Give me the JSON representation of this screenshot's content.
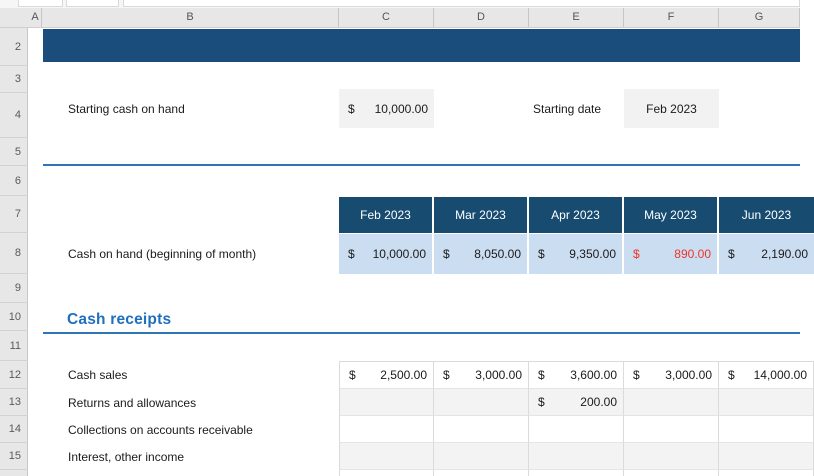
{
  "grid": {
    "column_letters": [
      "A",
      "B",
      "C",
      "D",
      "E",
      "F",
      "G"
    ],
    "row_numbers": [
      "2",
      "3",
      "4",
      "5",
      "6",
      "7",
      "8",
      "9",
      "10",
      "11",
      "12",
      "13",
      "14",
      "15"
    ]
  },
  "settings": {
    "starting_cash_label": "Starting cash on hand",
    "starting_cash_currency": "$",
    "starting_cash_value": "10,000.00",
    "starting_date_label": "Starting date",
    "starting_date_value": "Feb 2023"
  },
  "table": {
    "months": [
      "Feb 2023",
      "Mar 2023",
      "Apr 2023",
      "May 2023",
      "Jun 2023"
    ],
    "cash_on_hand_row": {
      "label": "Cash on hand (beginning of month)",
      "cells": [
        {
          "currency": "$",
          "amount": "10,000.00",
          "negative": false
        },
        {
          "currency": "$",
          "amount": "8,050.00",
          "negative": false
        },
        {
          "currency": "$",
          "amount": "9,350.00",
          "negative": false
        },
        {
          "currency": "$",
          "amount": "890.00",
          "negative": true
        },
        {
          "currency": "$",
          "amount": "2,190.00",
          "negative": false
        }
      ]
    },
    "section_heading": "Cash receipts",
    "receipt_rows": [
      {
        "label": "Cash sales",
        "banded": false,
        "cells": [
          {
            "currency": "$",
            "amount": "2,500.00",
            "negative": false
          },
          {
            "currency": "$",
            "amount": "3,000.00",
            "negative": false
          },
          {
            "currency": "$",
            "amount": "3,600.00",
            "negative": false
          },
          {
            "currency": "$",
            "amount": "3,000.00",
            "negative": false
          },
          {
            "currency": "$",
            "amount": "14,000.00",
            "negative": false
          }
        ]
      },
      {
        "label": "Returns and allowances",
        "banded": true,
        "cells": [
          null,
          null,
          {
            "currency": "$",
            "amount": "200.00",
            "negative": false
          },
          null,
          null
        ]
      },
      {
        "label": "Collections on accounts receivable",
        "banded": false,
        "cells": [
          null,
          null,
          null,
          null,
          null
        ]
      },
      {
        "label": "Interest, other income",
        "banded": true,
        "cells": [
          null,
          null,
          null,
          null,
          null
        ]
      }
    ]
  },
  "colors": {
    "banner_blue": "#1a4c7c",
    "month_header_blue": "#174b70",
    "light_blue_row": "#cbddf1",
    "gray_cell": "#f2f2f2",
    "band_gray": "#f3f3f3",
    "rule_blue": "#2e75b6",
    "heading_blue": "#1e6fc0",
    "negative_red": "#ee352c"
  }
}
